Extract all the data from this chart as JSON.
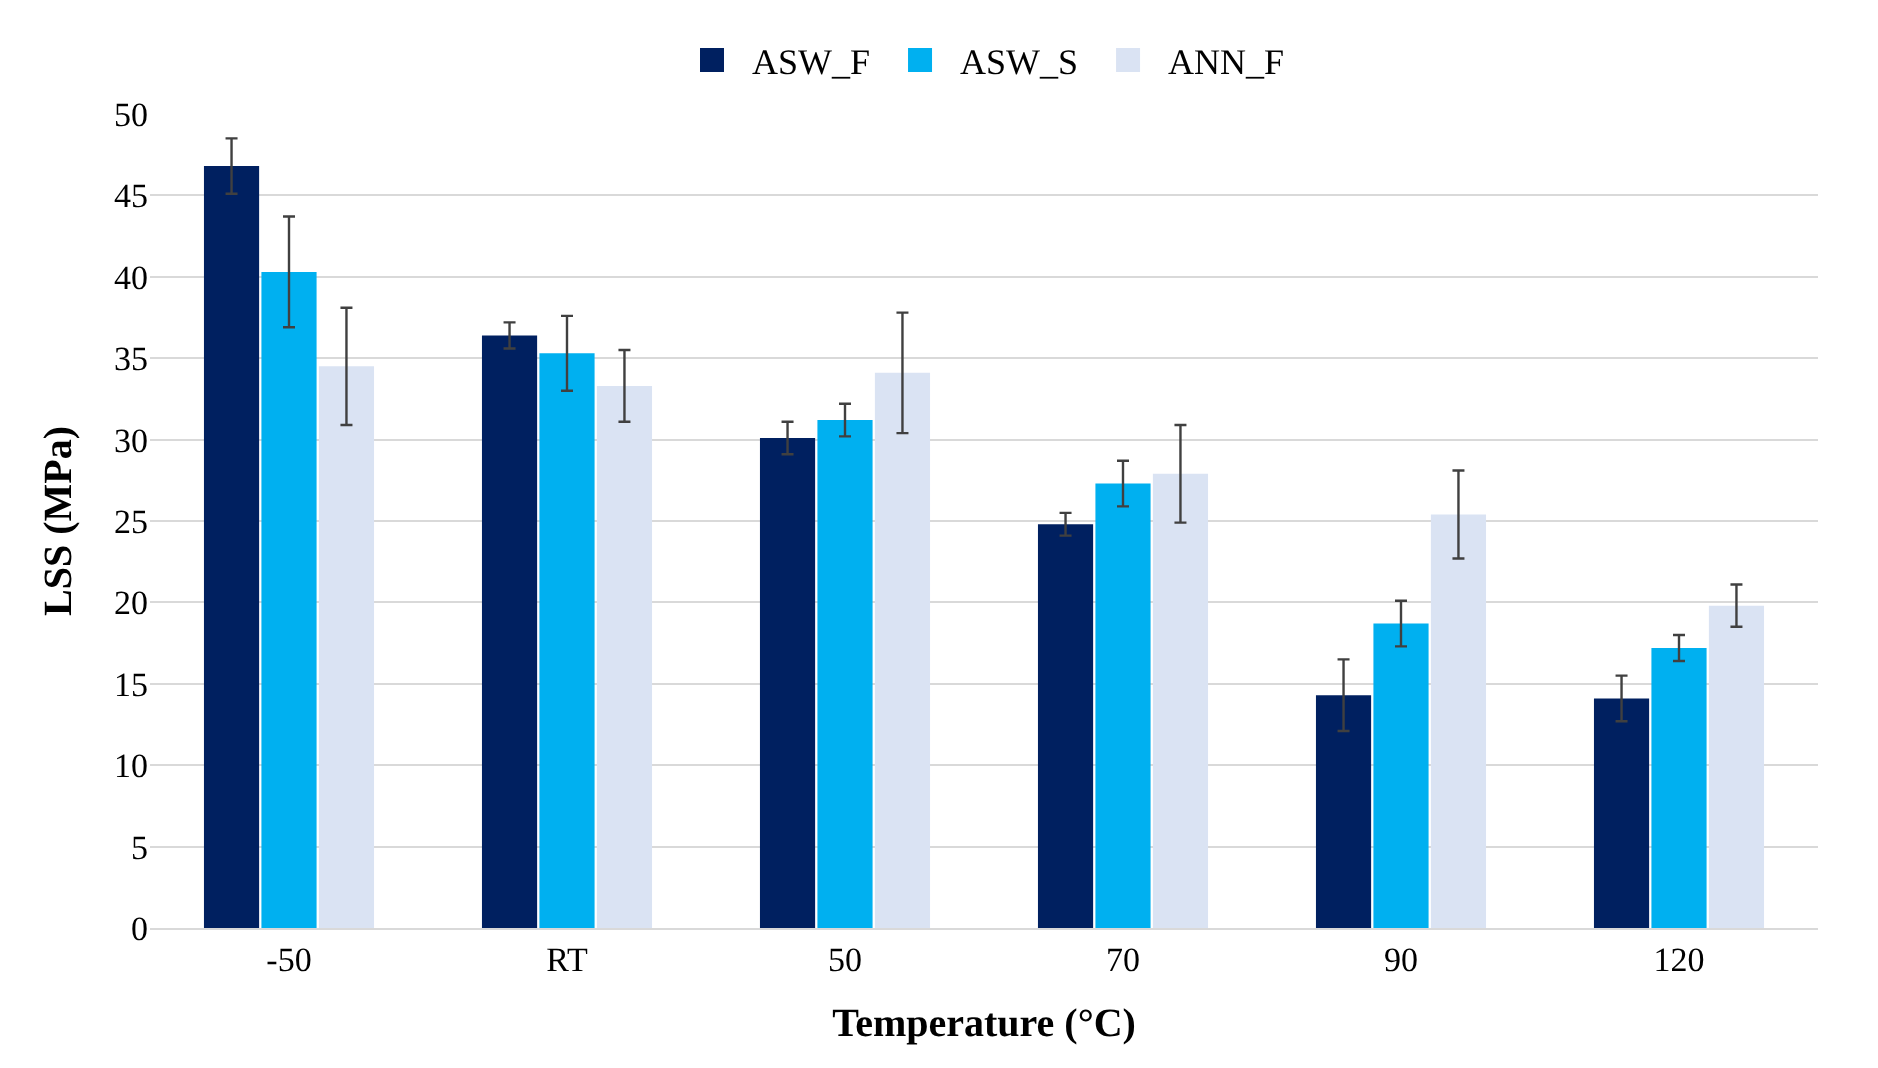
{
  "chart_data": {
    "type": "bar",
    "xlabel": "Temperature (°C)",
    "ylabel": "LSS (MPa)",
    "categories": [
      "-50",
      "RT",
      "50",
      "70",
      "90",
      "120"
    ],
    "series": [
      {
        "name": "ASW_F",
        "color": "#002060",
        "values": [
          46.8,
          36.4,
          30.1,
          24.8,
          14.3,
          14.1
        ],
        "errors": [
          1.7,
          0.8,
          1.0,
          0.7,
          2.2,
          1.4
        ]
      },
      {
        "name": "ASW_S",
        "color": "#00b0f0",
        "values": [
          40.3,
          35.3,
          31.2,
          27.3,
          18.7,
          17.2
        ],
        "errors": [
          3.4,
          2.3,
          1.0,
          1.4,
          1.4,
          0.8
        ]
      },
      {
        "name": "ANN_F",
        "color": "#dae3f3",
        "values": [
          34.5,
          33.3,
          34.1,
          27.9,
          25.4,
          19.8
        ],
        "errors": [
          3.6,
          2.2,
          3.7,
          3.0,
          2.7,
          1.3
        ]
      }
    ],
    "ylim": [
      0,
      50
    ],
    "yticks": [
      0,
      5,
      10,
      15,
      20,
      25,
      30,
      35,
      40,
      45,
      50
    ],
    "grid": "y",
    "legend": "top"
  }
}
